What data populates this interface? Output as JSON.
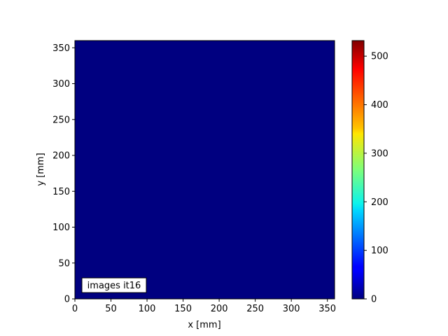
{
  "chart_data": {
    "type": "heatmap",
    "title": "",
    "xlabel": "x [mm]",
    "ylabel": "y [mm]",
    "xlim": [
      0,
      360
    ],
    "ylim": [
      0,
      360
    ],
    "xticks": [
      0,
      50,
      100,
      150,
      200,
      250,
      300,
      350
    ],
    "yticks": [
      0,
      50,
      100,
      150,
      200,
      250,
      300,
      350
    ],
    "values_description_uniform": 0,
    "colormap": "jet",
    "field_color": "#000080",
    "colorbar": {
      "range": [
        0,
        532
      ],
      "ticks": [
        0,
        100,
        200,
        300,
        400,
        500
      ]
    },
    "annotation": "images it16"
  }
}
